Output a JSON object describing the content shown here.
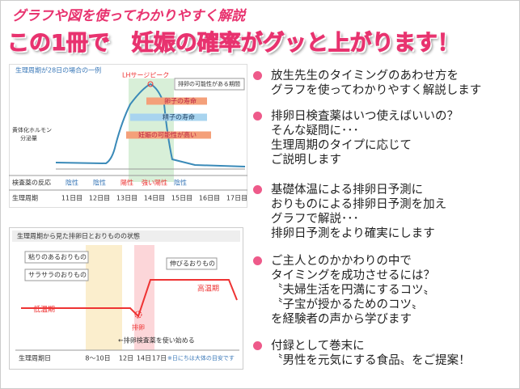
{
  "header": {
    "subtitle": "グラフや図を使ってわかりやすく解説",
    "title": "この1冊で　妊娠の確率がグッと上がります！"
  },
  "figure1": {
    "caption": "生理周期が28日の場合の一例",
    "y_label": [
      "黄体化ホルモン",
      "分泌量"
    ],
    "peak_label": "LHサージピーク",
    "period_label": "排卵の可能性がある期間",
    "egg_label": "卵子の寿命",
    "sperm_label": "精子の寿命",
    "chance_label": "妊娠の可能性が高い",
    "test_row_label": "検査薬の反応",
    "test_results": [
      "陰性",
      "陰性",
      "陽性",
      "強い陽性",
      "陰性"
    ],
    "cycle_row_label": "生理周期",
    "days": [
      "11日目",
      "12日目",
      "13日目",
      "14日目",
      "15日目",
      "16日目",
      "17日目"
    ]
  },
  "figure2": {
    "title": "生理周期から見た排卵日とおりものの状態",
    "sticky": "粘りのあるおりもの",
    "smooth": "サラサラのおりもの",
    "stretchy": "伸びるおりもの",
    "high": "高温期",
    "low": "低温期",
    "ovulation": "排卵",
    "start_note": "←排卵検査薬を使い始める",
    "row_label": "生理周期日",
    "days": [
      "8～10日",
      "12日",
      "14日",
      "17日"
    ],
    "note": "※日にちは大体の目安です"
  },
  "bullets": [
    [
      "放生先生のタイミングのあわせ方を",
      "グラフを使ってわかりやすく解説します"
    ],
    [
      "排卵日検査薬はいつ使えばいいの？",
      "そんな疑問に･･･",
      "生理周期のタイプに応じて",
      "ご説明します"
    ],
    [
      "基礎体温による排卵日予測に",
      "おりものによる排卵日予測を加え",
      "グラフで解説･･･",
      "排卵日予測をより確実にします"
    ],
    [
      "ご主人とのかかわりの中で",
      "タイミングを成功させるには？",
      "〝夫婦生活を円満にするコツ〟",
      "〝子宝が授かるためのコツ〟",
      "を経験者の声から学びます"
    ],
    [
      "付録として巻末に",
      "〝男性を元気にする食品〟をご提案！"
    ]
  ]
}
